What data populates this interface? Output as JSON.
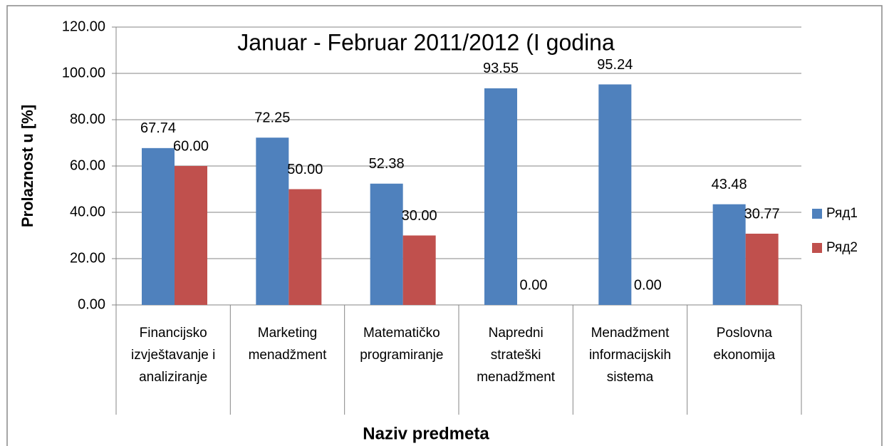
{
  "chart_data": {
    "type": "bar",
    "title": "Januar - Februar 2011/2012 (I godina",
    "x_label": "Naziv predmeta",
    "y_label": "Prolaznost u [%]",
    "categories": [
      "Financijsko\nizvještavanje i\nanaliziranje",
      "Marketing\nmenadžment",
      "Matematičko\nprogramiranje",
      "Napredni\nstrateški\nmenadžment",
      "Menadžment\ninformacijskih\nsistema",
      "Poslovna\nekonomija"
    ],
    "series": [
      {
        "name": "Ряд1",
        "color": "#4f81bd",
        "values": [
          67.74,
          72.25,
          52.38,
          93.55,
          95.24,
          43.48
        ],
        "value_labels": [
          "67.74",
          "72.25",
          "52.38",
          "93.55",
          "95.24",
          "43.48"
        ]
      },
      {
        "name": "Ряд2",
        "color": "#c0504d",
        "values": [
          60,
          50,
          30,
          0,
          0,
          30.77
        ],
        "value_labels": [
          "60.00",
          "50.00",
          "30.00",
          "0.00",
          "0.00",
          "30.77"
        ]
      }
    ],
    "ylim": [
      0,
      120
    ],
    "yticks": [
      {
        "value": 0,
        "label": "0.00"
      },
      {
        "value": 20,
        "label": "20.00"
      },
      {
        "value": 40,
        "label": "40.00"
      },
      {
        "value": 60,
        "label": "60.00"
      },
      {
        "value": 80,
        "label": "80.00"
      },
      {
        "value": 100,
        "label": "100.00"
      },
      {
        "value": 120,
        "label": "120.00"
      }
    ],
    "grid": true,
    "legend": "right"
  }
}
